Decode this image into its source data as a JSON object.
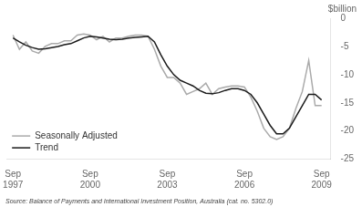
{
  "chart_data": {
    "type": "line",
    "ylabel": "$billion",
    "note": "Source: Balance of Payments and International Investment Position, Australia (cat. no. 5302.0)",
    "x": [
      1997.75,
      1998.0,
      1998.25,
      1998.5,
      1998.75,
      1999.0,
      1999.25,
      1999.5,
      1999.75,
      2000.0,
      2000.25,
      2000.5,
      2000.75,
      2001.0,
      2001.25,
      2001.5,
      2001.75,
      2002.0,
      2002.25,
      2002.5,
      2002.75,
      2003.0,
      2003.25,
      2003.5,
      2003.75,
      2004.0,
      2004.25,
      2004.5,
      2004.75,
      2005.0,
      2005.25,
      2005.5,
      2005.75,
      2006.0,
      2006.25,
      2006.5,
      2006.75,
      2007.0,
      2007.25,
      2007.5,
      2007.75,
      2008.0,
      2008.25,
      2008.5,
      2008.75,
      2009.0,
      2009.25,
      2009.5,
      2009.75
    ],
    "series": [
      {
        "name": "Seasonally Adjusted",
        "color": "#aaaaaa",
        "values": [
          -3.0,
          -5.5,
          -4.2,
          -5.8,
          -6.2,
          -5.0,
          -4.5,
          -4.5,
          -4.0,
          -4.0,
          -3.0,
          -2.8,
          -3.0,
          -3.8,
          -3.2,
          -4.2,
          -3.5,
          -3.5,
          -3.2,
          -3.0,
          -3.0,
          -3.2,
          -5.5,
          -8.5,
          -10.5,
          -10.5,
          -11.5,
          -13.5,
          -13.0,
          -12.5,
          -11.5,
          -13.5,
          -12.5,
          -12.2,
          -12.0,
          -12.0,
          -12.2,
          -14.0,
          -16.5,
          -19.5,
          -21.0,
          -21.5,
          -21.0,
          -19.5,
          -16.0,
          -13.0,
          -7.5,
          -15.5,
          -15.5
        ]
      },
      {
        "name": "Trend",
        "color": "#1a1a1a",
        "values": [
          -3.5,
          -4.2,
          -4.8,
          -5.2,
          -5.5,
          -5.4,
          -5.2,
          -5.0,
          -4.7,
          -4.5,
          -4.0,
          -3.5,
          -3.2,
          -3.3,
          -3.5,
          -3.7,
          -3.8,
          -3.7,
          -3.5,
          -3.4,
          -3.3,
          -3.2,
          -4.2,
          -6.5,
          -8.5,
          -10.0,
          -11.0,
          -11.5,
          -12.0,
          -12.8,
          -13.3,
          -13.4,
          -13.2,
          -12.8,
          -12.5,
          -12.5,
          -12.8,
          -13.5,
          -15.0,
          -17.0,
          -19.0,
          -20.5,
          -20.5,
          -19.5,
          -17.5,
          -15.5,
          -13.5,
          -13.5,
          -14.5
        ]
      }
    ],
    "xlim": [
      1997.5,
      2010.1
    ],
    "xticks": [
      {
        "value": 1997.75,
        "label": "Sep\n1997"
      },
      {
        "value": 2000.75,
        "label": "Sep\n2000"
      },
      {
        "value": 2003.75,
        "label": "Sep\n2003"
      },
      {
        "value": 2006.75,
        "label": "Sep\n2006"
      },
      {
        "value": 2009.75,
        "label": "Sep\n2009"
      }
    ],
    "ylim": [
      -25,
      0
    ],
    "yticks": [
      0,
      -5,
      -10,
      -15,
      -20,
      -25
    ],
    "grid": false,
    "legend": "lower left"
  }
}
